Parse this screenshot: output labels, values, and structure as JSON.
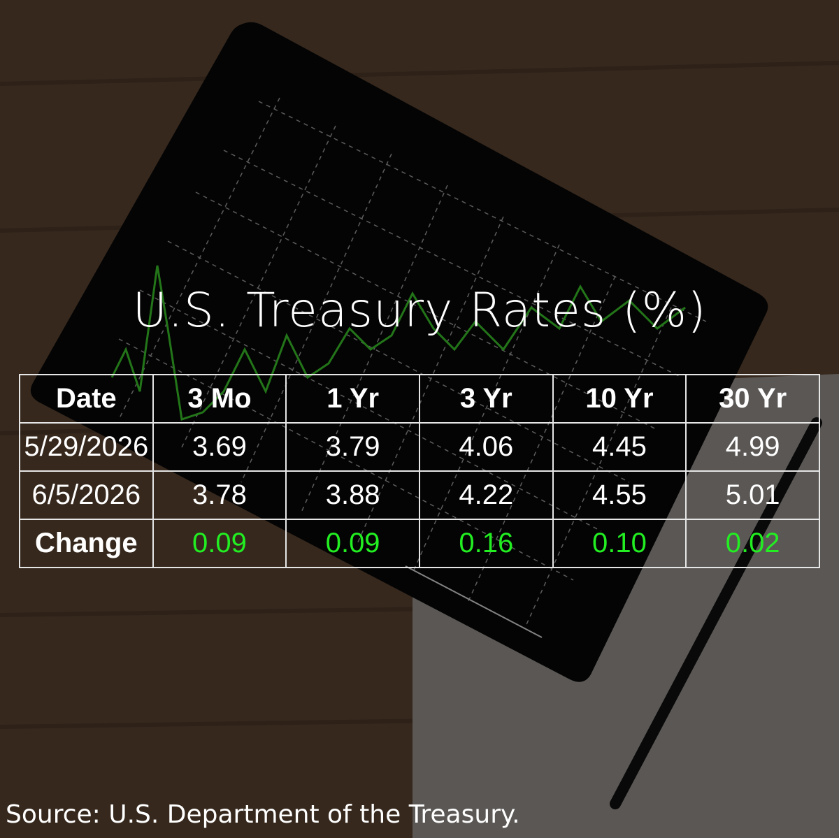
{
  "title": "U.S. Treasury Rates (%)",
  "table": {
    "header": [
      "Date",
      "3 Mo",
      "1 Yr",
      "3 Yr",
      "10 Yr",
      "30 Yr"
    ],
    "rows": [
      [
        "5/29/2026",
        "3.69",
        "3.79",
        "4.06",
        "4.45",
        "4.99"
      ],
      [
        "6/5/2026",
        "3.78",
        "3.88",
        "4.22",
        "4.55",
        "5.01"
      ],
      [
        "Change",
        "0.09",
        "0.09",
        "0.16",
        "0.10",
        "0.02"
      ]
    ]
  },
  "source": "Source: U.S. Department of the Treasury."
}
